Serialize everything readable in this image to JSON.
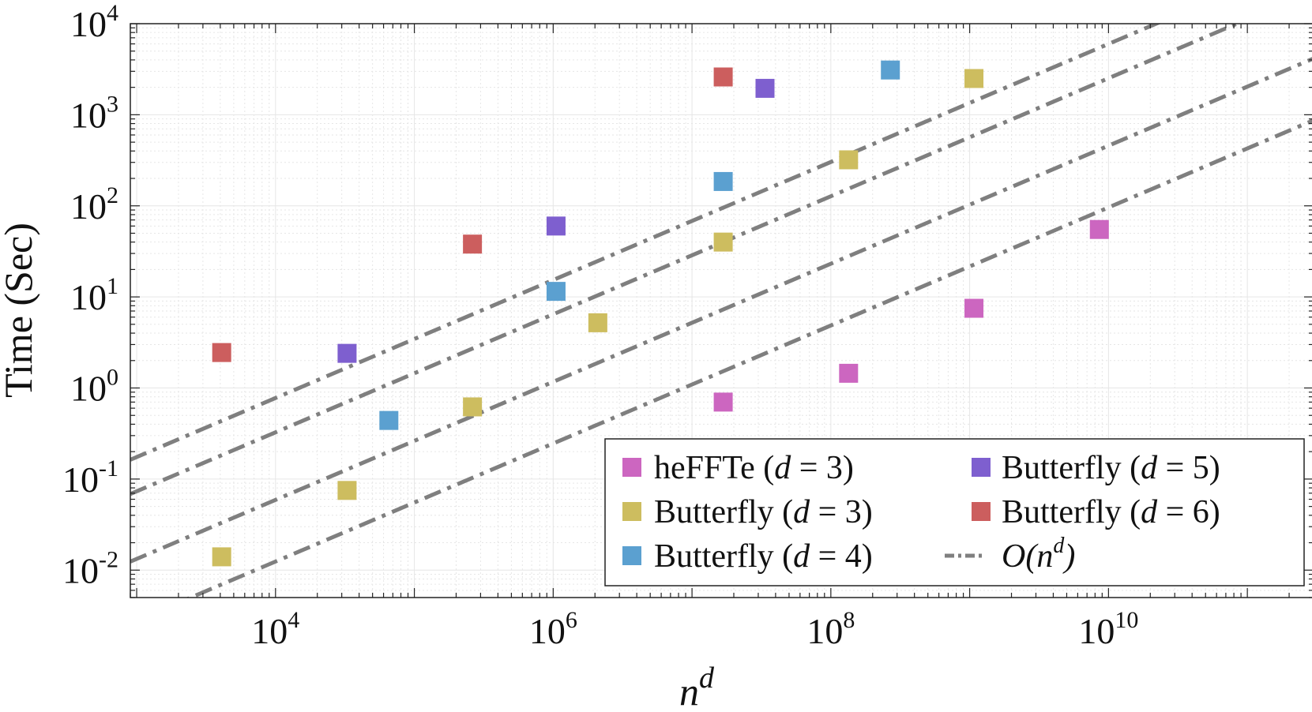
{
  "chart_data": {
    "type": "scatter",
    "title": "",
    "xlabel": "n^d",
    "xlabel_base": "n",
    "xlabel_sup": "d",
    "ylabel": "Time (Sec)",
    "xscale": "log",
    "yscale": "log",
    "xlim": [
      900,
      300000000000
    ],
    "ylim": [
      0.005,
      10000
    ],
    "grid": true,
    "x_ticks": [
      {
        "value": 10000,
        "base": "10",
        "exp": "4"
      },
      {
        "value": 1000000,
        "base": "10",
        "exp": "6"
      },
      {
        "value": 100000000,
        "base": "10",
        "exp": "8"
      },
      {
        "value": 10000000000,
        "base": "10",
        "exp": "10"
      }
    ],
    "y_ticks": [
      {
        "value": 0.01,
        "base": "10",
        "exp": "-2"
      },
      {
        "value": 0.1,
        "base": "10",
        "exp": "-1"
      },
      {
        "value": 1,
        "base": "10",
        "exp": "0"
      },
      {
        "value": 10,
        "base": "10",
        "exp": "1"
      },
      {
        "value": 100,
        "base": "10",
        "exp": "2"
      },
      {
        "value": 1000,
        "base": "10",
        "exp": "3"
      },
      {
        "value": 10000,
        "base": "10",
        "exp": "4"
      }
    ],
    "series": [
      {
        "name": "heFFTe (d = 3)",
        "label_main": "heFFTe",
        "d_value": "3",
        "color": "#cc66c0",
        "x": [
          16777216,
          134217728,
          1073741824,
          8589934592
        ],
        "y": [
          0.7,
          1.45,
          7.5,
          55
        ]
      },
      {
        "name": "Butterfly (d = 3)",
        "label_main": "Butterfly",
        "d_value": "3",
        "color": "#cdbd5f",
        "x": [
          4096,
          32768,
          262144,
          2097152,
          16777216,
          134217728,
          1073741824
        ],
        "y": [
          0.014,
          0.075,
          0.62,
          5.2,
          40,
          320,
          2500
        ]
      },
      {
        "name": "Butterfly (d = 4)",
        "label_main": "Butterfly",
        "d_value": "4",
        "color": "#5ba0d0",
        "x": [
          65536,
          1048576,
          16777216,
          268435456
        ],
        "y": [
          0.44,
          11.5,
          185,
          3100
        ]
      },
      {
        "name": "Butterfly (d = 5)",
        "label_main": "Butterfly",
        "d_value": "5",
        "color": "#7e5fcf",
        "x": [
          32768,
          1048576,
          33554432
        ],
        "y": [
          2.4,
          60,
          1950
        ]
      },
      {
        "name": "Butterfly (d = 6)",
        "label_main": "Butterfly",
        "d_value": "6",
        "color": "#cc5e5e",
        "x": [
          4096,
          262144,
          16777216
        ],
        "y": [
          2.45,
          38,
          2600
        ]
      }
    ],
    "reference_lines": {
      "name": "O(n^d)",
      "label_main": "O(n",
      "label_sup": "d",
      "label_close": ")",
      "style": "dash-dot",
      "color": "#7f7f7f",
      "lines": [
        {
          "x": [
            900,
            300000000000
          ],
          "y": [
            0.163,
            54300
          ]
        },
        {
          "x": [
            900,
            300000000000
          ],
          "y": [
            0.0685,
            22800
          ]
        },
        {
          "x": [
            900,
            300000000000
          ],
          "y": [
            0.0124,
            4150
          ]
        },
        {
          "x": [
            900,
            300000000000
          ],
          "y": [
            0.00261,
            870
          ]
        }
      ]
    },
    "legend": {
      "location": "bottom-right",
      "columns": 2,
      "order": [
        "heFFTe (d = 3)",
        "Butterfly (d = 5)",
        "Butterfly (d = 3)",
        "Butterfly (d = 6)",
        "Butterfly (d = 4)",
        "O(n^d)"
      ]
    }
  }
}
